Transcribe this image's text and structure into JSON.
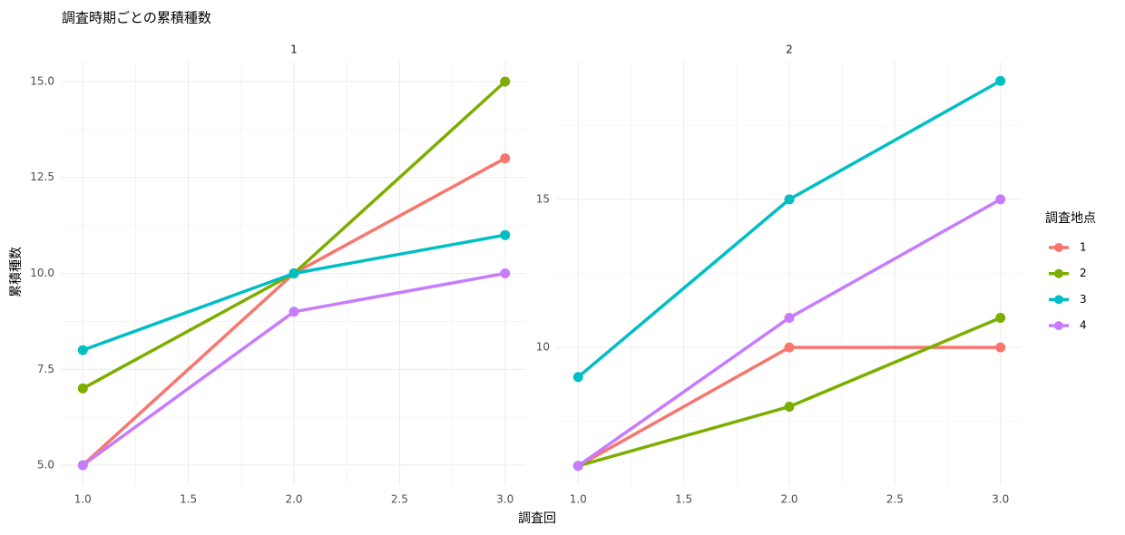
{
  "title": "調査時期ごとの累積種数",
  "x_label": "調査回",
  "y_label": "累積種数",
  "legend_title": "調査地点",
  "chart_data": [
    {
      "type": "line",
      "title": "1",
      "x": [
        1,
        2,
        3
      ],
      "xlim": [
        0.9,
        3.1
      ],
      "xticks": [
        {
          "value": 1,
          "label": "1.0"
        },
        1.5,
        {
          "value": 2,
          "label": "2.0"
        },
        2.5,
        {
          "value": 3,
          "label": "3.0"
        }
      ],
      "minor_xticks": [
        1.25,
        1.75,
        2.25,
        2.75
      ],
      "ylim": [
        4.48,
        15.52
      ],
      "yticks": [
        {
          "value": 5,
          "label": "5.0"
        },
        7.5,
        {
          "value": 10,
          "label": "10.0"
        },
        12.5,
        {
          "value": 15,
          "label": "15.0"
        }
      ],
      "minor_yticks": [
        6.25,
        8.75,
        11.25,
        13.75
      ],
      "grid": true,
      "series": [
        {
          "name": "1",
          "color": "#F8766D",
          "values": [
            5,
            10,
            13
          ]
        },
        {
          "name": "2",
          "color": "#7CAE00",
          "values": [
            7,
            10,
            15
          ]
        },
        {
          "name": "3",
          "color": "#00BFC4",
          "values": [
            8,
            10,
            11
          ]
        },
        {
          "name": "4",
          "color": "#C77CFF",
          "values": [
            5,
            9,
            10
          ]
        }
      ]
    },
    {
      "type": "line",
      "title": "2",
      "x": [
        1,
        2,
        3
      ],
      "xlim": [
        0.9,
        3.1
      ],
      "xticks": [
        {
          "value": 1,
          "label": "1.0"
        },
        1.5,
        {
          "value": 2,
          "label": "2.0"
        },
        2.5,
        {
          "value": 3,
          "label": "3.0"
        }
      ],
      "minor_xticks": [
        1.25,
        1.75,
        2.25,
        2.75
      ],
      "ylim": [
        5.35,
        19.65
      ],
      "yticks": [
        10,
        15
      ],
      "minor_yticks": [
        7.5,
        12.5,
        17.5
      ],
      "grid": true,
      "series": [
        {
          "name": "1",
          "color": "#F8766D",
          "values": [
            6,
            10,
            10
          ]
        },
        {
          "name": "2",
          "color": "#7CAE00",
          "values": [
            6,
            8,
            11
          ]
        },
        {
          "name": "3",
          "color": "#00BFC4",
          "values": [
            9,
            15,
            19
          ]
        },
        {
          "name": "4",
          "color": "#C77CFF",
          "values": [
            6,
            11,
            15
          ]
        }
      ]
    }
  ]
}
